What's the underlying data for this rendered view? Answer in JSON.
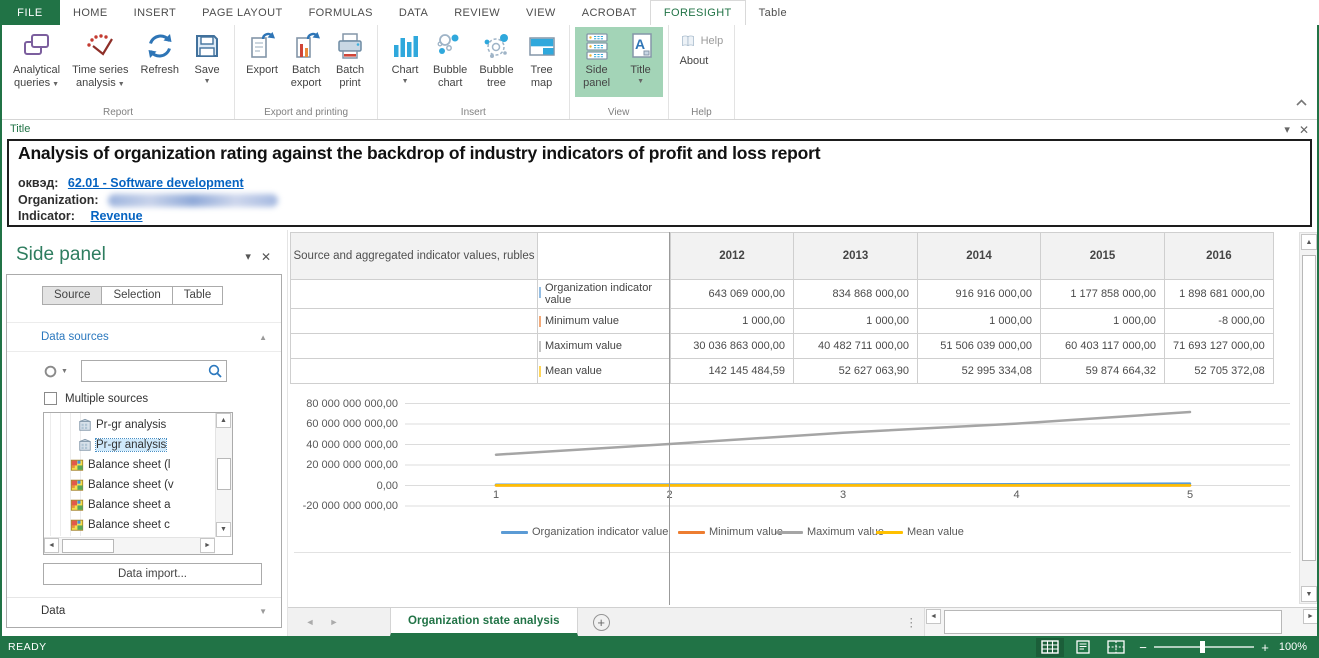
{
  "colors": {
    "accent_green": "#217346",
    "link_blue": "#0563C1",
    "panel_blue": "#2B78BE",
    "series_blue": "#5B9BD5",
    "series_orange": "#ED7D31",
    "series_gray": "#A5A5A5",
    "series_yellow": "#FFC000"
  },
  "menubar": {
    "file_label": "FILE",
    "tabs": [
      {
        "label": "HOME"
      },
      {
        "label": "INSERT"
      },
      {
        "label": "PAGE LAYOUT"
      },
      {
        "label": "FORMULAS"
      },
      {
        "label": "DATA"
      },
      {
        "label": "REVIEW"
      },
      {
        "label": "VIEW"
      },
      {
        "label": "ACROBAT"
      },
      {
        "label": "FORESIGHT",
        "active": true
      },
      {
        "label": "Table"
      }
    ]
  },
  "ribbon": {
    "groups": [
      {
        "label": "Report",
        "buttons": [
          {
            "name": "analytical-queries",
            "icon": "analytical-queries",
            "lines": [
              "Analytical",
              "queries"
            ],
            "caret": "inline"
          },
          {
            "name": "time-series-analysis",
            "icon": "time-series",
            "lines": [
              "Time series",
              "analysis"
            ],
            "caret": "inline"
          },
          {
            "name": "refresh",
            "icon": "refresh",
            "lines": [
              "Refresh"
            ]
          },
          {
            "name": "save",
            "icon": "save",
            "lines": [
              "Save"
            ],
            "caret": "below"
          }
        ]
      },
      {
        "label": "Export and printing",
        "buttons": [
          {
            "name": "export",
            "icon": "export",
            "lines": [
              "Export"
            ]
          },
          {
            "name": "batch-export",
            "icon": "batch-export",
            "lines": [
              "Batch",
              "export"
            ]
          },
          {
            "name": "batch-print",
            "icon": "batch-print",
            "lines": [
              "Batch",
              "print"
            ]
          }
        ]
      },
      {
        "label": "Insert",
        "buttons": [
          {
            "name": "chart",
            "icon": "chart",
            "lines": [
              "Chart"
            ],
            "caret": "below"
          },
          {
            "name": "bubble-chart",
            "icon": "bubble-chart",
            "lines": [
              "Bubble",
              "chart"
            ]
          },
          {
            "name": "bubble-tree",
            "icon": "bubble-tree",
            "lines": [
              "Bubble",
              "tree"
            ]
          },
          {
            "name": "tree-map",
            "icon": "tree-map",
            "lines": [
              "Tree",
              "map"
            ]
          }
        ]
      },
      {
        "label": "View",
        "buttons": [
          {
            "name": "side-panel",
            "icon": "side-panel",
            "lines": [
              "Side",
              "panel"
            ],
            "highlighted": true
          },
          {
            "name": "title",
            "icon": "title",
            "lines": [
              "Title"
            ],
            "caret": "below",
            "highlighted": true
          }
        ]
      },
      {
        "label": "Help",
        "small": true,
        "buttons": [
          {
            "name": "help",
            "icon": "help-book",
            "lines": [
              "Help"
            ],
            "disabled": true
          },
          {
            "name": "about",
            "lines": [
              "About"
            ]
          }
        ]
      }
    ]
  },
  "title_panel": {
    "header_label": "Title",
    "heading": "Analysis of organization rating against the backdrop of industry indicators of profit and loss report",
    "okved_label": "оквэд:",
    "okved_value": "62.01 - Software development",
    "organization_label": "Organization:",
    "indicator_label": "Indicator:",
    "indicator_value": "Revenue"
  },
  "side_panel": {
    "title": "Side panel",
    "tabs": [
      {
        "label": "Source",
        "active": true
      },
      {
        "label": "Selection"
      },
      {
        "label": "Table"
      }
    ],
    "data_sources_label": "Data sources",
    "multiple_sources_label": "Multiple sources",
    "search_value": "",
    "tree_items": [
      {
        "label": "Pr-gr analysis",
        "icon": "cube-gray",
        "deep": true
      },
      {
        "label": "Pr-gr analysis",
        "icon": "cube-gray",
        "deep": true,
        "selected": true
      },
      {
        "label": "Balance sheet (l",
        "icon": "cube-color"
      },
      {
        "label": "Balance sheet (v",
        "icon": "cube-color"
      },
      {
        "label": "Balance sheet a",
        "icon": "cube-color"
      },
      {
        "label": "Balance sheet c",
        "icon": "cube-color"
      }
    ],
    "data_import_label": "Data import...",
    "data_section_label": "Data"
  },
  "table": {
    "corner_header": "Source and aggregated indicator values, rubles",
    "years": [
      "2012",
      "2013",
      "2014",
      "2015",
      "2016"
    ],
    "rows": [
      {
        "label": "Organization indicator value",
        "color": "#5B9BD5",
        "values": [
          "643 069 000,00",
          "834 868 000,00",
          "916 916 000,00",
          "1 177 858 000,00",
          "1 898 681 000,00"
        ]
      },
      {
        "label": "Minimum value",
        "color": "#ED7D31",
        "values": [
          "1 000,00",
          "1 000,00",
          "1 000,00",
          "1 000,00",
          "-8 000,00"
        ]
      },
      {
        "label": "Maximum value",
        "color": "#A5A5A5",
        "values": [
          "30 036 863 000,00",
          "40 482 711 000,00",
          "51 506 039 000,00",
          "60 403 117 000,00",
          "71 693 127 000,00"
        ]
      },
      {
        "label": "Mean value",
        "color": "#FFC000",
        "values": [
          "142 145 484,59",
          "52 627 063,90",
          "52 995 334,08",
          "59 874 664,32",
          "52 705 372,08"
        ]
      }
    ]
  },
  "chart_data": {
    "type": "line",
    "x": [
      1,
      2,
      3,
      4,
      5
    ],
    "x_labels": [
      "1",
      "2",
      "3",
      "4",
      "5"
    ],
    "ylim": [
      -20000000000,
      80000000000
    ],
    "grid": true,
    "legend_position": "bottom",
    "y_ticks": [
      {
        "label": "80 000 000 000,00",
        "value": 80000000000
      },
      {
        "label": "60 000 000 000,00",
        "value": 60000000000
      },
      {
        "label": "40 000 000 000,00",
        "value": 40000000000
      },
      {
        "label": "20 000 000 000,00",
        "value": 20000000000
      },
      {
        "label": "0,00",
        "value": 0
      },
      {
        "label": "-20 000 000 000,00",
        "value": -20000000000
      }
    ],
    "series": [
      {
        "name": "Organization indicator value",
        "color": "#5B9BD5",
        "values": [
          643069000,
          834868000,
          916916000,
          1177858000,
          1898681000
        ]
      },
      {
        "name": "Minimum value",
        "color": "#ED7D31",
        "values": [
          1000,
          1000,
          1000,
          1000,
          -8000
        ]
      },
      {
        "name": "Maximum value",
        "color": "#A5A5A5",
        "values": [
          30036863000,
          40482711000,
          51506039000,
          60403117000,
          71693127000
        ]
      },
      {
        "name": "Mean value",
        "color": "#FFC000",
        "values": [
          142145484.59,
          52627063.9,
          52995334.08,
          59874664.32,
          52705372.08
        ]
      }
    ]
  },
  "sheet_bar": {
    "active_tab": "Organization state analysis"
  },
  "status_bar": {
    "ready": "READY",
    "zoom_level": "100%"
  }
}
